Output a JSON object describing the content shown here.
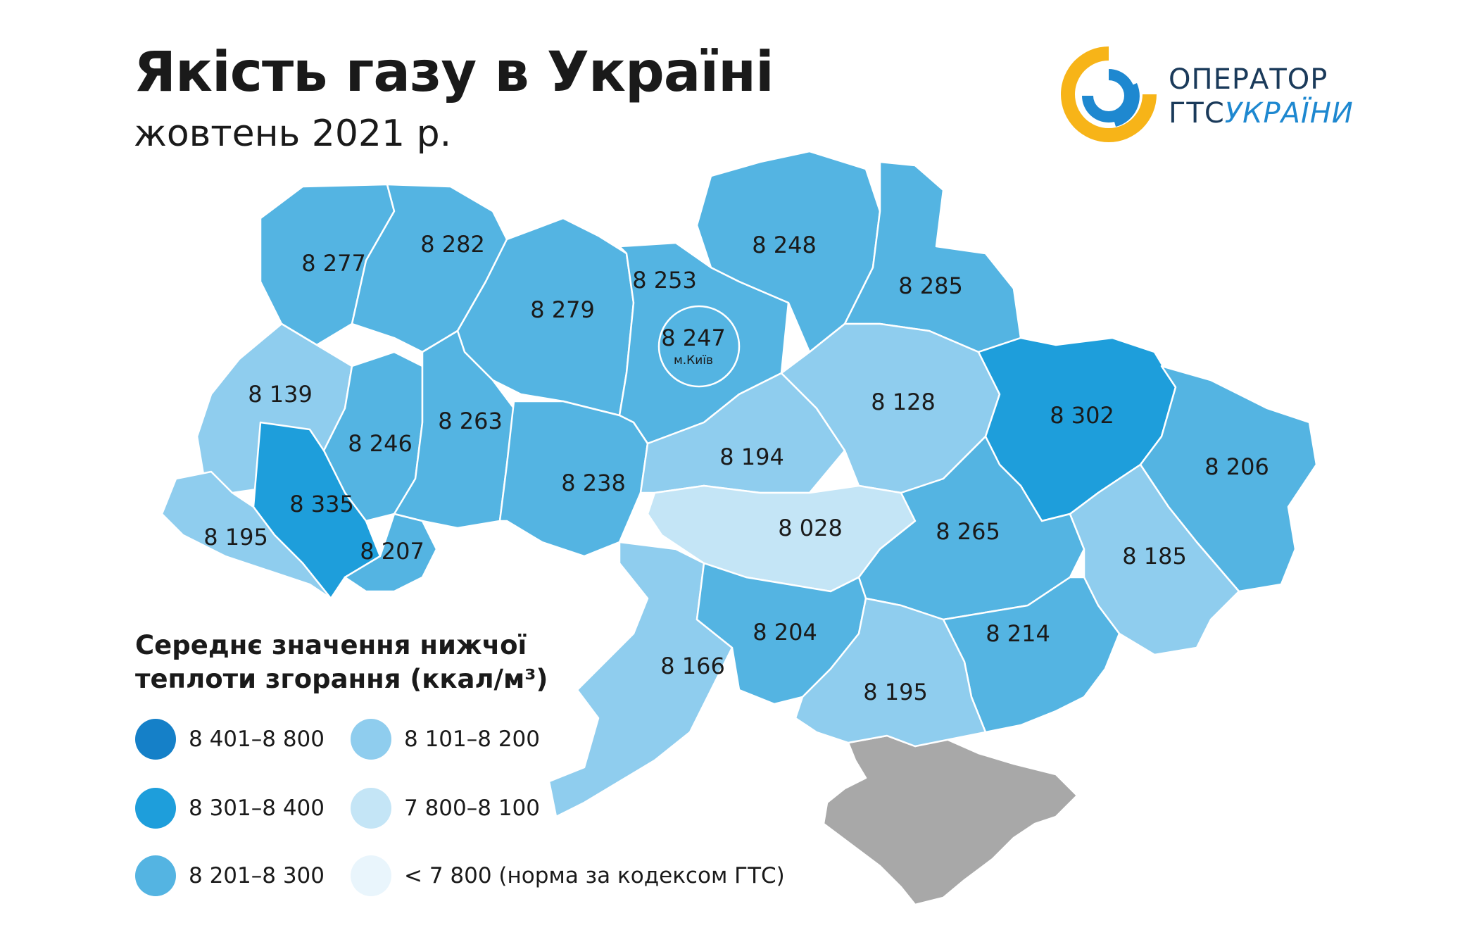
{
  "title": "Якість газу в Україні",
  "subtitle": "жовтень 2021 р.",
  "logo": {
    "line1": "ОПЕРАТОР",
    "line2_a": "ГТС",
    "line2_b": "УКРАЇНИ"
  },
  "legend": {
    "title_line1": "Середнє значення нижчої",
    "title_line2": "теплоти згорання (ккал/м³)",
    "items": [
      {
        "label": "8 401–8 800",
        "color": "#1580c8"
      },
      {
        "label": "8 301–8 400",
        "color": "#1e9edb"
      },
      {
        "label": "8 201–8 300",
        "color": "#54b4e2"
      },
      {
        "label": "8 101–8 200",
        "color": "#8fcdee"
      },
      {
        "label": "7 800–8 100",
        "color": "#c4e5f6"
      },
      {
        "label": "< 7 800 (норма за кодексом ГТС)",
        "color": "#e9f5fc"
      }
    ]
  },
  "regions": [
    {
      "value": "8 277",
      "fill": "#54b4e2"
    },
    {
      "value": "8 282",
      "fill": "#54b4e2"
    },
    {
      "value": "8 279",
      "fill": "#54b4e2"
    },
    {
      "value": "8 253",
      "fill": "#54b4e2"
    },
    {
      "value": "8 248",
      "fill": "#54b4e2"
    },
    {
      "value": "8 285",
      "fill": "#54b4e2"
    },
    {
      "value": "8 139",
      "fill": "#8fcdee"
    },
    {
      "value": "8 246",
      "fill": "#54b4e2"
    },
    {
      "value": "8 263",
      "fill": "#54b4e2"
    },
    {
      "value": "8 238",
      "fill": "#54b4e2"
    },
    {
      "value": "8 194",
      "fill": "#8fcdee"
    },
    {
      "value": "8 128",
      "fill": "#8fcdee"
    },
    {
      "value": "8 302",
      "fill": "#1e9edb"
    },
    {
      "value": "8 206",
      "fill": "#54b4e2"
    },
    {
      "value": "8 335",
      "fill": "#1e9edb"
    },
    {
      "value": "8 195",
      "fill": "#8fcdee"
    },
    {
      "value": "8 207",
      "fill": "#54b4e2"
    },
    {
      "value": "8 028",
      "fill": "#c4e5f6"
    },
    {
      "value": "8 265",
      "fill": "#54b4e2"
    },
    {
      "value": "8 185",
      "fill": "#8fcdee"
    },
    {
      "value": "8 166",
      "fill": "#8fcdee"
    },
    {
      "value": "8 204",
      "fill": "#54b4e2"
    },
    {
      "value": "8 214",
      "fill": "#54b4e2"
    },
    {
      "value": "8 195",
      "fill": "#8fcdee"
    }
  ],
  "kyiv": {
    "value": "8 247",
    "label": "м.Київ"
  },
  "crimea_fill": "#a8a8a8"
}
